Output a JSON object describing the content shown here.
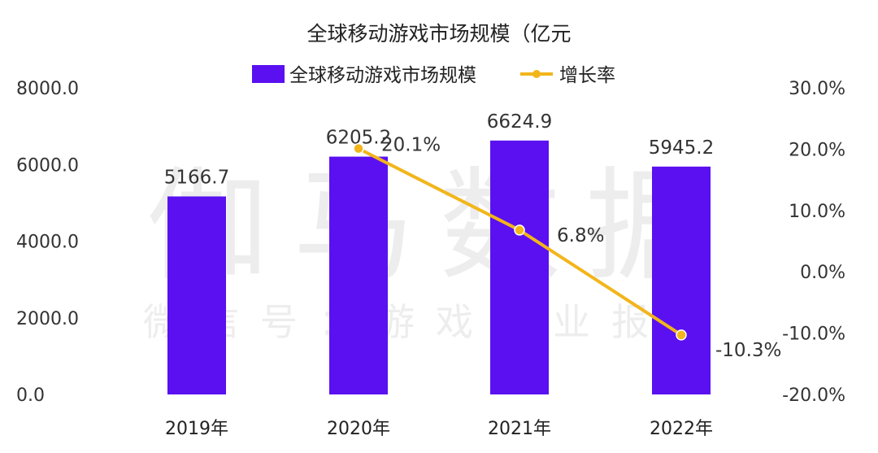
{
  "watermark": {
    "main": "伽马数据",
    "sub": "微信号：游戏产业报"
  },
  "chart_data": {
    "type": "bar",
    "title": "全球移动游戏市场规模（亿元",
    "legend_position": "top",
    "categories": [
      "2019年",
      "2020年",
      "2021年",
      "2022年"
    ],
    "series": [
      {
        "name": "全球移动游戏市场规模",
        "type": "bar",
        "axis": "left",
        "color": "#5a10f0",
        "values": [
          5166.7,
          6205.2,
          6624.9,
          5945.2
        ],
        "labels": [
          "5166.7",
          "6205.2",
          "6624.9",
          "5945.2"
        ]
      },
      {
        "name": "增长率",
        "type": "line",
        "axis": "right",
        "color": "#f2b51b",
        "values": [
          null,
          20.1,
          6.8,
          -10.3
        ],
        "labels": [
          "",
          "20.1%",
          "6.8%",
          "-10.3%"
        ]
      }
    ],
    "y_left": {
      "range": [
        0,
        8000
      ],
      "ticks": [
        0,
        2000,
        4000,
        6000,
        8000
      ],
      "tick_labels": [
        "0.0",
        "2000.0",
        "4000.0",
        "6000.0",
        "8000.0"
      ]
    },
    "y_right": {
      "range": [
        -20,
        30
      ],
      "ticks": [
        -20,
        -10,
        0,
        10,
        20,
        30
      ],
      "tick_labels": [
        "-20.0%",
        "-10.0%",
        "0.0%",
        "10.0%",
        "20.0%",
        "30.0%"
      ]
    },
    "grid": false
  }
}
